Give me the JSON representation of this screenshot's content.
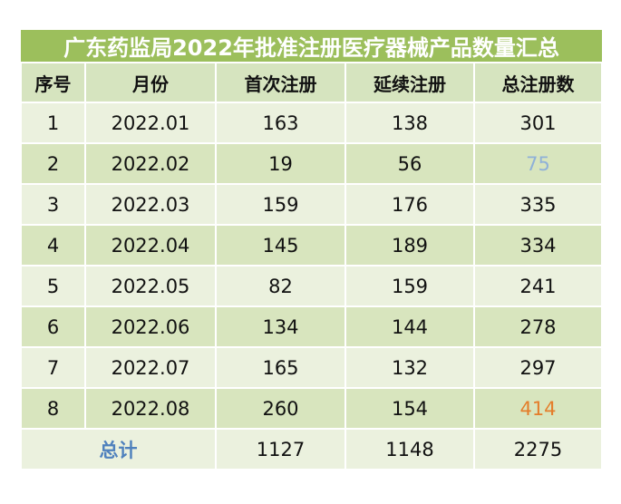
{
  "title": "广东药监局2022年批准注册医疗器械产品数量汇总",
  "headers": [
    "序号",
    "月份",
    "首次注册",
    "延续注册",
    "总注册数"
  ],
  "rows": [
    [
      "1",
      "2022.01",
      "163",
      "138",
      "301"
    ],
    [
      "2",
      "2022.02",
      "19",
      "56",
      "75"
    ],
    [
      "3",
      "2022.03",
      "159",
      "176",
      "335"
    ],
    [
      "4",
      "2022.04",
      "145",
      "189",
      "334"
    ],
    [
      "5",
      "2022.05",
      "82",
      "159",
      "241"
    ],
    [
      "6",
      "2022.06",
      "134",
      "144",
      "278"
    ],
    [
      "7",
      "2022.07",
      "165",
      "132",
      "297"
    ],
    [
      "8",
      "2022.08",
      "260",
      "154",
      "414"
    ]
  ],
  "total": {
    "label": "总计",
    "first": "1127",
    "renewal": "1148",
    "sum": "2275"
  },
  "colors": {
    "title_bg": "#9cbf5c",
    "header_bg": "#d6e4bf",
    "row_light": "#ebf1de",
    "row_dark": "#d8e5be",
    "min_highlight": "#8fb1d8",
    "max_highlight": "#e47d2a",
    "total_label": "#4f81bd"
  }
}
